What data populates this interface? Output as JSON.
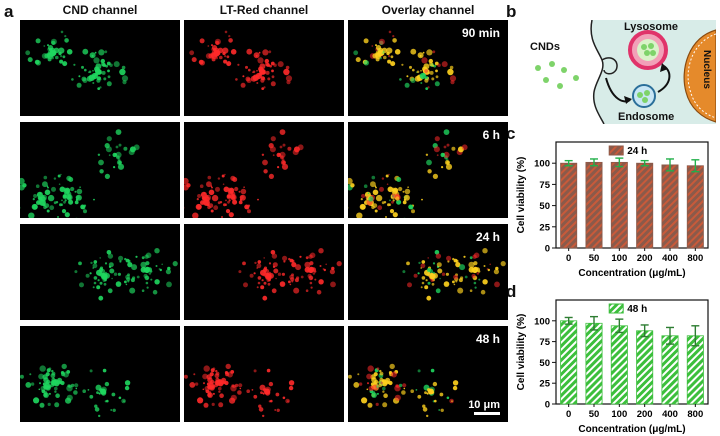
{
  "panel_letters": {
    "a": "a",
    "b": "b",
    "c": "c",
    "d": "d"
  },
  "micrographs": {
    "columns": [
      "CND channel",
      "LT-Red channel",
      "Overlay channel"
    ],
    "rows": [
      "90 min",
      "6 h",
      "24 h",
      "48 h"
    ],
    "scale_bar": "10 μm",
    "colors": {
      "cnd": "#1fd65f",
      "lt_red": "#ff2a2a",
      "overlay": "#ffd21e"
    }
  },
  "schematic": {
    "labels": {
      "cnds": "CNDs",
      "lysosome": "Lysosome",
      "endosome": "Endosome",
      "nucleus": "Nucleus"
    },
    "colors": {
      "cell": "#d8ece8",
      "nucleus": "#e58a2b",
      "lysosome_ring": "#e0336a",
      "dots": "#7ed36a"
    }
  },
  "chart_data": [
    {
      "type": "bar",
      "panel": "c",
      "legend": "24 h",
      "categories": [
        "0",
        "50",
        "100",
        "200",
        "400",
        "800"
      ],
      "values": [
        100,
        101,
        101,
        100,
        98,
        97
      ],
      "errors": [
        3,
        4,
        5,
        3,
        7,
        7
      ],
      "xlabel": "Concentration (μg/mL)",
      "ylabel": "Cell viability (%)",
      "ylim": [
        0,
        125
      ],
      "yticks": [
        0,
        25,
        50,
        75,
        100
      ],
      "bar_color": "#8b5a4a",
      "error_color": "#22b04a"
    },
    {
      "type": "bar",
      "panel": "d",
      "legend": "48 h",
      "categories": [
        "0",
        "50",
        "100",
        "200",
        "400",
        "800"
      ],
      "values": [
        100,
        97,
        94,
        88,
        82,
        82
      ],
      "errors": [
        4,
        8,
        8,
        7,
        10,
        12
      ],
      "xlabel": "Concentration (μg/mL)",
      "ylabel": "Cell viability (%)",
      "ylim": [
        0,
        125
      ],
      "yticks": [
        0,
        25,
        50,
        75,
        100
      ],
      "bar_color": "#3cbf3c",
      "error_color": "#2e7d32"
    }
  ]
}
